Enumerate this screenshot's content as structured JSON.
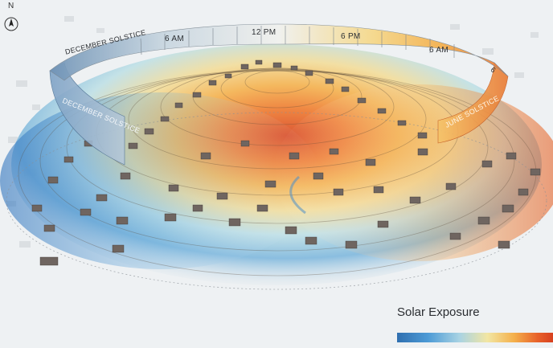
{
  "compass": {
    "north_label": "N",
    "icon": "north-arrow-icon"
  },
  "time_ring": {
    "hour_labels": [
      "6 AM",
      "12 PM",
      "6 PM",
      "6 AM",
      "6"
    ],
    "solstice_labels": {
      "december_top": "DECEMBER SOLSTICE",
      "december_side": "DECEMBER SOLSTICE",
      "june_side": "JUNE SOLSTICE"
    }
  },
  "legend": {
    "title": "Solar Exposure",
    "gradient_colors": [
      "#2f6fb0",
      "#4d9bd6",
      "#a9d3e3",
      "#f2e6a3",
      "#f4b04b",
      "#e8622a",
      "#d7401f"
    ]
  }
}
